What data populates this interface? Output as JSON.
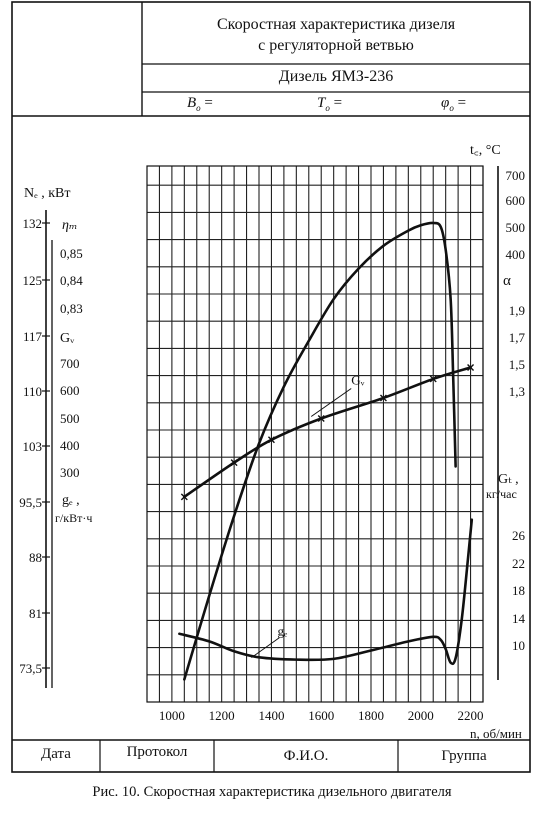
{
  "header": {
    "title_line1": "Скоростная характеристика дизеля",
    "title_line2": "с регуляторной ветвью",
    "engine": "Дизель ЯМЗ-236",
    "param_b": "B",
    "param_b_sub": "o",
    "param_t": "T",
    "param_t_sub": "o",
    "param_phi": "φ",
    "param_phi_sub": "o",
    "equals": "="
  },
  "footer": {
    "date_label": "Дата",
    "protocol_label": "Протокол",
    "fio_label": "Ф.И.О.",
    "group_label": "Группа"
  },
  "caption": "Рис. 10. Скоростная характеристика дизельного двигателя",
  "chart_data": {
    "type": "line",
    "x": {
      "label": "n, об/мин",
      "ticks": [
        1000,
        1200,
        1400,
        1600,
        1800,
        2000,
        2200
      ],
      "range": [
        900,
        2250
      ]
    },
    "left_axes": {
      "Ne": {
        "label": "Nₑ , кВт",
        "ticks": [
          "132",
          "125",
          "117",
          "110",
          "103",
          "95,5",
          "88",
          "81",
          "73,5"
        ]
      },
      "eta_m": {
        "label": "ηₘ",
        "ticks": [
          "0,85",
          "0,84",
          "0,83"
        ]
      },
      "Gv": {
        "label": "Gᵥ",
        "ticks": [
          "700",
          "600",
          "500",
          "400",
          "300"
        ]
      },
      "ge": {
        "label": "gₑ ,",
        "unit": "г/кВт·ч"
      }
    },
    "right_axes": {
      "tg": {
        "label": "t꜀, °C",
        "ticks": [
          "700",
          "600",
          "500",
          "400"
        ]
      },
      "alpha": {
        "label": "α",
        "ticks": [
          "1,9",
          "1,7",
          "1,5",
          "1,3"
        ]
      },
      "Gt": {
        "label": "Gₜ ,",
        "unit": "кг/час",
        "ticks": [
          "26",
          "22",
          "18",
          "14",
          "10"
        ]
      }
    },
    "series": [
      {
        "name": "N",
        "points": [
          [
            1050,
            72
          ],
          [
            1150,
            83
          ],
          [
            1250,
            93.5
          ],
          [
            1350,
            103
          ],
          [
            1450,
            110.5
          ],
          [
            1550,
            116.5
          ],
          [
            1650,
            122
          ],
          [
            1750,
            126
          ],
          [
            1850,
            129
          ],
          [
            1950,
            131
          ],
          [
            2000,
            131.7
          ],
          [
            2050,
            132
          ],
          [
            2080,
            131.5
          ],
          [
            2100,
            128.5
          ],
          [
            2120,
            122
          ],
          [
            2130,
            112
          ],
          [
            2140,
            100
          ]
        ]
      },
      {
        "name": "G_в",
        "label": "Gᵥ",
        "points": [
          [
            1050,
            96
          ],
          [
            1250,
            100.5
          ],
          [
            1400,
            103.5
          ],
          [
            1600,
            106.3
          ],
          [
            1850,
            109
          ],
          [
            2050,
            111.5
          ],
          [
            2200,
            113
          ]
        ]
      },
      {
        "name": "g_e",
        "label": "gₑ",
        "points": [
          [
            1030,
            78
          ],
          [
            1150,
            77
          ],
          [
            1250,
            75.7
          ],
          [
            1350,
            74.9
          ],
          [
            1500,
            74.6
          ],
          [
            1650,
            74.7
          ],
          [
            1800,
            75.8
          ],
          [
            1950,
            77
          ],
          [
            2050,
            77.6
          ],
          [
            2080,
            77.2
          ],
          [
            2100,
            76
          ],
          [
            2120,
            74.2
          ],
          [
            2140,
            74.8
          ],
          [
            2165,
            80
          ],
          [
            2190,
            88
          ],
          [
            2205,
            93
          ]
        ]
      }
    ],
    "legend": "none",
    "grid": true
  }
}
